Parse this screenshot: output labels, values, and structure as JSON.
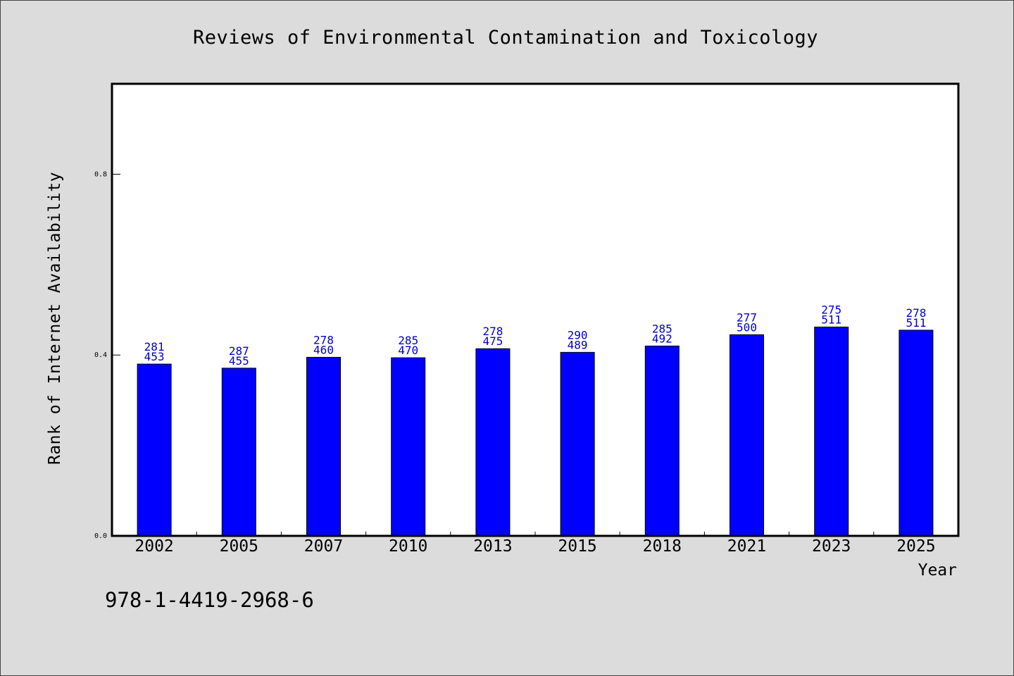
{
  "chart_data": {
    "type": "bar",
    "title": "Reviews of Environmental Contamination and Toxicology",
    "xlabel": "Year",
    "ylabel": "Rank of Internet Availability",
    "categories": [
      "2002",
      "2005",
      "2007",
      "2010",
      "2013",
      "2015",
      "2018",
      "2021",
      "2023",
      "2025"
    ],
    "values": [
      0.38,
      0.371,
      0.395,
      0.394,
      0.414,
      0.406,
      0.42,
      0.445,
      0.462,
      0.455
    ],
    "label_top": [
      "281",
      "287",
      "278",
      "285",
      "278",
      "290",
      "285",
      "277",
      "275",
      "278"
    ],
    "label_bottom": [
      "453",
      "455",
      "460",
      "470",
      "475",
      "489",
      "492",
      "500",
      "511",
      "511"
    ],
    "yticks": [
      0.0,
      0.4,
      0.8
    ],
    "ytick_labels": [
      "0.0",
      "0.4",
      "0.8"
    ],
    "ylim": [
      0,
      1.0
    ],
    "grid": false,
    "legend": "none",
    "bar_color": "#0000ff",
    "label_color": "#0000cc",
    "background": "#dcdcdc",
    "plot_background": "#ffffff"
  },
  "footer": {
    "isbn": "978-1-4419-2968-6"
  }
}
